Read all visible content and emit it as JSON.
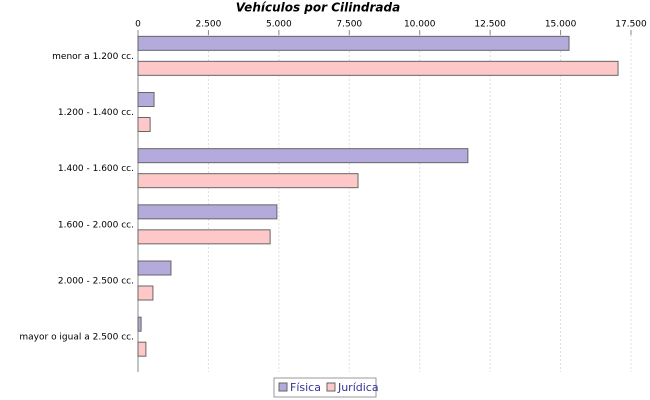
{
  "chart_data": {
    "type": "bar",
    "orientation": "horizontal",
    "title": "Vehículos por Cilindrada",
    "categories": [
      "menor a 1.200 cc.",
      "1.200 - 1.400 cc.",
      "1.400 - 1.600 cc.",
      "1.600 - 2.000 cc.",
      "2.000 - 2.500 cc.",
      "mayor o igual a 2.500 cc."
    ],
    "series": [
      {
        "name": "Física",
        "color": "#b4aadb",
        "values": [
          15300,
          570,
          11710,
          4930,
          1170,
          110
        ]
      },
      {
        "name": "Jurídica",
        "color": "#ffc8c8",
        "values": [
          17040,
          430,
          7810,
          4690,
          530,
          280
        ]
      }
    ],
    "xlim": [
      0,
      17500
    ],
    "xticks": [
      0,
      {
        "value": 2500,
        "label": "2.500"
      },
      {
        "value": 5000,
        "label": "5.000"
      },
      {
        "value": 7500,
        "label": "7.500"
      },
      {
        "value": 10000,
        "label": "10.000"
      },
      {
        "value": 12500,
        "label": "12.500"
      },
      {
        "value": 15000,
        "label": "15.000"
      },
      {
        "value": 17500,
        "label": "17.500"
      }
    ],
    "grid": true,
    "legend": "bottom"
  }
}
